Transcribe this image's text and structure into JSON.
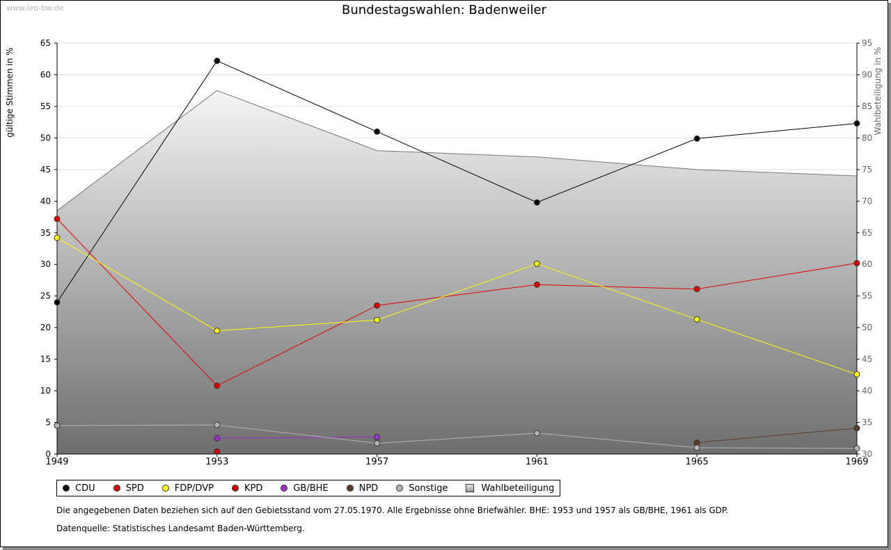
{
  "watermark": "www.leo-bw.de",
  "title": "Bundestagswahlen: Badenweiler",
  "notes": [
    "Die angegebenen Daten beziehen sich auf den Gebietsstand vom 27.05.1970. Alle Ergebnisse ohne Briefwähler. BHE: 1953 und 1957 als GB/BHE, 1961 als GDP.",
    "Datenquelle: Statistisches Landesamt Baden-Württemberg."
  ],
  "chart_data": {
    "type": "line",
    "title": "Bundestagswahlen: Badenweiler",
    "ylabel": "gültige Stimmen in %",
    "y2label": "Wahlbeteiligung in %",
    "x": [
      "1949",
      "1953",
      "1957",
      "1961",
      "1965",
      "1969"
    ],
    "ylim": [
      0,
      65
    ],
    "yticks": [
      0,
      5,
      10,
      15,
      20,
      25,
      30,
      35,
      40,
      45,
      50,
      55,
      60,
      65
    ],
    "y2lim": [
      30,
      95
    ],
    "y2ticks": [
      30,
      35,
      40,
      45,
      50,
      55,
      60,
      65,
      70,
      75,
      80,
      85,
      90,
      95
    ],
    "grid": true,
    "legend_position": "bottom",
    "series": [
      {
        "name": "CDU",
        "color": "#000000",
        "values": [
          24.0,
          62.2,
          51.0,
          39.8,
          49.9,
          52.3
        ]
      },
      {
        "name": "SPD",
        "color": "#e00000",
        "values": [
          37.2,
          10.8,
          23.5,
          26.8,
          26.1,
          30.2
        ]
      },
      {
        "name": "FDP/DVP",
        "color": "#ffff00",
        "values": [
          34.2,
          19.5,
          21.2,
          30.1,
          21.3,
          12.6
        ]
      },
      {
        "name": "KPD",
        "color": "#cc0000",
        "values": [
          null,
          0.4,
          null,
          null,
          null,
          null
        ]
      },
      {
        "name": "GB/BHE",
        "color": "#9933cc",
        "values": [
          null,
          2.5,
          2.7,
          null,
          null,
          null
        ]
      },
      {
        "name": "NPD",
        "color": "#5c3a26",
        "values": [
          null,
          null,
          null,
          null,
          1.8,
          4.1
        ]
      },
      {
        "name": "Sonstige",
        "color": "#b4b4b4",
        "values": [
          4.5,
          4.6,
          1.7,
          3.3,
          1.0,
          0.9
        ]
      }
    ],
    "area": {
      "name": "Wahlbeteiligung",
      "axis": "right",
      "values": [
        68.5,
        87.5,
        78.0,
        77.0,
        75.0,
        74.0
      ]
    }
  }
}
